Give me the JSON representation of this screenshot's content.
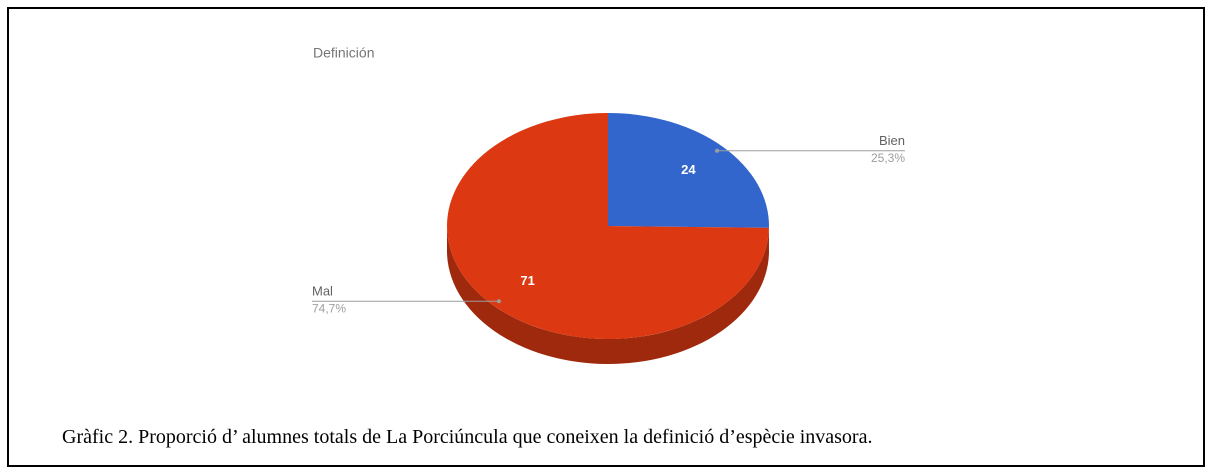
{
  "chart_data": {
    "type": "pie",
    "title": "Definición",
    "categories": [
      "Bien",
      "Mal"
    ],
    "values": [
      24,
      71
    ],
    "percent_labels": [
      "25,3%",
      "74,7%"
    ],
    "colors": [
      "#3366cc",
      "#dc3912"
    ],
    "three_d": true
  },
  "caption": "Gràfic 2. Proporció d’ alumnes totals de La Porciúncula que coneixen la definició d’espècie invasora."
}
